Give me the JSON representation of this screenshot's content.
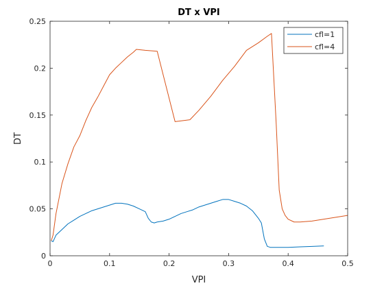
{
  "chart_data": {
    "type": "line",
    "title": "DT x VPI",
    "xlabel": "VPI",
    "ylabel": "DT",
    "xlim": [
      0,
      0.5
    ],
    "ylim": [
      0,
      0.25
    ],
    "xticks": [
      0,
      0.1,
      0.2,
      0.3,
      0.4,
      0.5
    ],
    "yticks": [
      0,
      0.05,
      0.1,
      0.15,
      0.2,
      0.25
    ],
    "xtick_labels": [
      "0",
      "0.1",
      "0.2",
      "0.3",
      "0.4",
      "0.5"
    ],
    "ytick_labels": [
      "0",
      "0.05",
      "0.1",
      "0.15",
      "0.2",
      "0.25"
    ],
    "grid": false,
    "legend_position": "top-right",
    "series": [
      {
        "name": "cfl=1",
        "color": "#0072bd",
        "x": [
          0.002,
          0.005,
          0.01,
          0.02,
          0.03,
          0.04,
          0.05,
          0.06,
          0.07,
          0.08,
          0.09,
          0.1,
          0.11,
          0.12,
          0.13,
          0.14,
          0.15,
          0.16,
          0.165,
          0.17,
          0.175,
          0.18,
          0.19,
          0.2,
          0.21,
          0.22,
          0.23,
          0.24,
          0.25,
          0.26,
          0.27,
          0.28,
          0.29,
          0.3,
          0.31,
          0.32,
          0.33,
          0.34,
          0.35,
          0.355,
          0.36,
          0.365,
          0.37,
          0.38,
          0.4,
          0.42,
          0.44,
          0.46
        ],
        "y": [
          0.016,
          0.015,
          0.022,
          0.028,
          0.034,
          0.038,
          0.042,
          0.045,
          0.048,
          0.05,
          0.052,
          0.054,
          0.056,
          0.056,
          0.055,
          0.053,
          0.05,
          0.047,
          0.04,
          0.036,
          0.035,
          0.036,
          0.037,
          0.039,
          0.042,
          0.045,
          0.047,
          0.049,
          0.052,
          0.054,
          0.056,
          0.058,
          0.06,
          0.06,
          0.058,
          0.056,
          0.053,
          0.048,
          0.04,
          0.035,
          0.018,
          0.01,
          0.009,
          0.009,
          0.009,
          0.0095,
          0.01,
          0.0105
        ]
      },
      {
        "name": "cfl=4",
        "color": "#d95319",
        "x": [
          0.002,
          0.005,
          0.01,
          0.02,
          0.03,
          0.04,
          0.05,
          0.06,
          0.07,
          0.08,
          0.09,
          0.1,
          0.11,
          0.12,
          0.13,
          0.14,
          0.145,
          0.16,
          0.18,
          0.21,
          0.235,
          0.25,
          0.27,
          0.29,
          0.31,
          0.33,
          0.35,
          0.365,
          0.372,
          0.38,
          0.385,
          0.39,
          0.395,
          0.4,
          0.41,
          0.42,
          0.44,
          0.46,
          0.48,
          0.5
        ],
        "y": [
          0.016,
          0.022,
          0.045,
          0.077,
          0.098,
          0.116,
          0.128,
          0.144,
          0.158,
          0.169,
          0.181,
          0.193,
          0.2,
          0.206,
          0.212,
          0.217,
          0.22,
          0.219,
          0.218,
          0.143,
          0.145,
          0.155,
          0.17,
          0.187,
          0.202,
          0.219,
          0.227,
          0.234,
          0.237,
          0.14,
          0.07,
          0.05,
          0.043,
          0.039,
          0.036,
          0.036,
          0.037,
          0.039,
          0.041,
          0.043
        ]
      }
    ]
  }
}
